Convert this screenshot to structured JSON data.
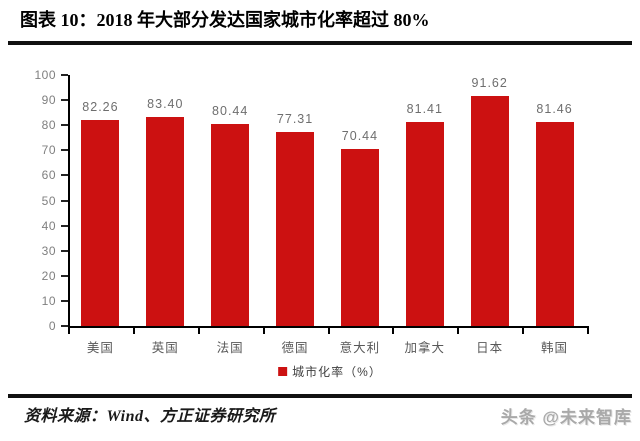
{
  "header": {
    "title": "图表 10：2018 年大部分发达国家城市化率超过 80%"
  },
  "footer": {
    "source": "资料来源：Wind、方正证券研究所",
    "watermark": "头条 @未来智库"
  },
  "colors": {
    "bar": "#cc1111",
    "axis": "#000000",
    "ytick_label": "#7f7f7f",
    "value_label": "#6e6e6e",
    "category_label": "#595959",
    "rule": "#111111"
  },
  "chart_data": {
    "type": "bar",
    "title": "2018 年大部分发达国家城市化率超过 80%",
    "categories": [
      "美国",
      "英国",
      "法国",
      "德国",
      "意大利",
      "加拿大",
      "日本",
      "韩国"
    ],
    "values": [
      82.26,
      83.4,
      80.44,
      77.31,
      70.44,
      81.41,
      91.62,
      81.46
    ],
    "value_labels": [
      "82.26",
      "83.40",
      "80.44",
      "77.31",
      "70.44",
      "81.41",
      "91.62",
      "81.46"
    ],
    "legend": "城市化率（%）",
    "legend_position": "bottom-center",
    "xlabel": "",
    "ylabel": "",
    "ylim": [
      0,
      100
    ],
    "yticks": [
      0,
      10,
      20,
      30,
      40,
      50,
      60,
      70,
      80,
      90,
      100
    ],
    "grid": false
  }
}
